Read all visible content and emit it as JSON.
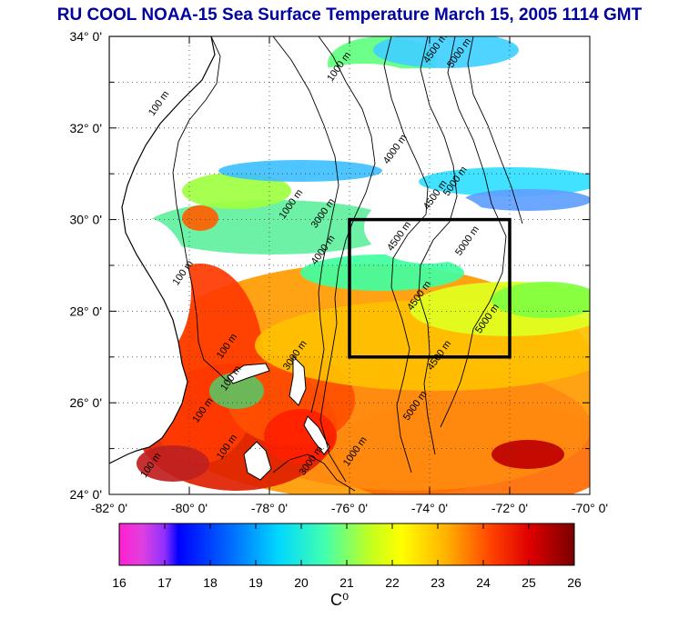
{
  "title": "RU COOL  NOAA-15 Sea Surface Temperature March 15, 2005 1114 GMT",
  "colors": {
    "land": "#ffffff",
    "cloud": "#ffffff",
    "title": "#0000a0",
    "palette": [
      "#ff20d0",
      "#c060e0",
      "#0000ff",
      "#0060ff",
      "#00c8ff",
      "#00ffc0",
      "#40ff60",
      "#c0ff20",
      "#ffff00",
      "#ffc000",
      "#ff8000",
      "#ff3000",
      "#d00000",
      "#800000"
    ]
  },
  "map": {
    "lat_labels": [
      "34° 0'",
      "32° 0'",
      "30° 0'",
      "28° 0'",
      "26° 0'",
      "24° 0'"
    ],
    "lat_values": [
      34,
      32,
      30,
      28,
      26,
      24
    ],
    "lon_labels": [
      "-82° 0'",
      "-80° 0'",
      "-78° 0'",
      "-76° 0'",
      "-74° 0'",
      "-72° 0'",
      "-70° 0'"
    ],
    "lon_values": [
      -82,
      -80,
      -78,
      -76,
      -74,
      -72,
      -70
    ],
    "extent": {
      "lon_min": -82,
      "lon_max": -70,
      "lat_min": 24,
      "lat_max": 34
    },
    "grid": "dotted",
    "box": {
      "lon_min": -76,
      "lon_max": -72,
      "lat_min": 27,
      "lat_max": 30
    },
    "contour_labels": [
      {
        "text": "100 m",
        "lon": -80.7,
        "lat": 32.5
      },
      {
        "text": "1000 m",
        "lon": -76.2,
        "lat": 33.3
      },
      {
        "text": "4500 m",
        "lon": -73.8,
        "lat": 33.7
      },
      {
        "text": "5000 m",
        "lon": -73.2,
        "lat": 33.6
      },
      {
        "text": "4000 m",
        "lon": -74.8,
        "lat": 31.5
      },
      {
        "text": "5000 m",
        "lon": -73.3,
        "lat": 30.8
      },
      {
        "text": "4500 m",
        "lon": -73.8,
        "lat": 30.5
      },
      {
        "text": "1000 m",
        "lon": -77.4,
        "lat": 30.3
      },
      {
        "text": "3000 m",
        "lon": -76.6,
        "lat": 30.1
      },
      {
        "text": "4500 m",
        "lon": -74.7,
        "lat": 29.6
      },
      {
        "text": "5000 m",
        "lon": -73.0,
        "lat": 29.5
      },
      {
        "text": "4000 m",
        "lon": -76.6,
        "lat": 29.3
      },
      {
        "text": "4500 m",
        "lon": -74.2,
        "lat": 28.3
      },
      {
        "text": "5000 m",
        "lon": -72.5,
        "lat": 27.8
      },
      {
        "text": "100 m",
        "lon": -80.1,
        "lat": 28.8
      },
      {
        "text": "100 m",
        "lon": -79.0,
        "lat": 27.2
      },
      {
        "text": "3000 m",
        "lon": -77.3,
        "lat": 27.0
      },
      {
        "text": "4500 m",
        "lon": -73.7,
        "lat": 27.0
      },
      {
        "text": "100 m",
        "lon": -78.9,
        "lat": 26.5
      },
      {
        "text": "5000 m",
        "lon": -74.3,
        "lat": 25.9
      },
      {
        "text": "100 m",
        "lon": -79.6,
        "lat": 25.8
      },
      {
        "text": "100 m",
        "lon": -79.0,
        "lat": 25.0
      },
      {
        "text": "100 m",
        "lon": -80.9,
        "lat": 24.6
      },
      {
        "text": "3000 m",
        "lon": -76.9,
        "lat": 24.7
      },
      {
        "text": "1000 m",
        "lon": -75.8,
        "lat": 24.9
      }
    ]
  },
  "colorbar": {
    "min": 16,
    "max": 26,
    "tick_labels": [
      "16",
      "17",
      "18",
      "19",
      "20",
      "21",
      "22",
      "23",
      "24",
      "25",
      "26"
    ],
    "unit": "C⁰"
  }
}
